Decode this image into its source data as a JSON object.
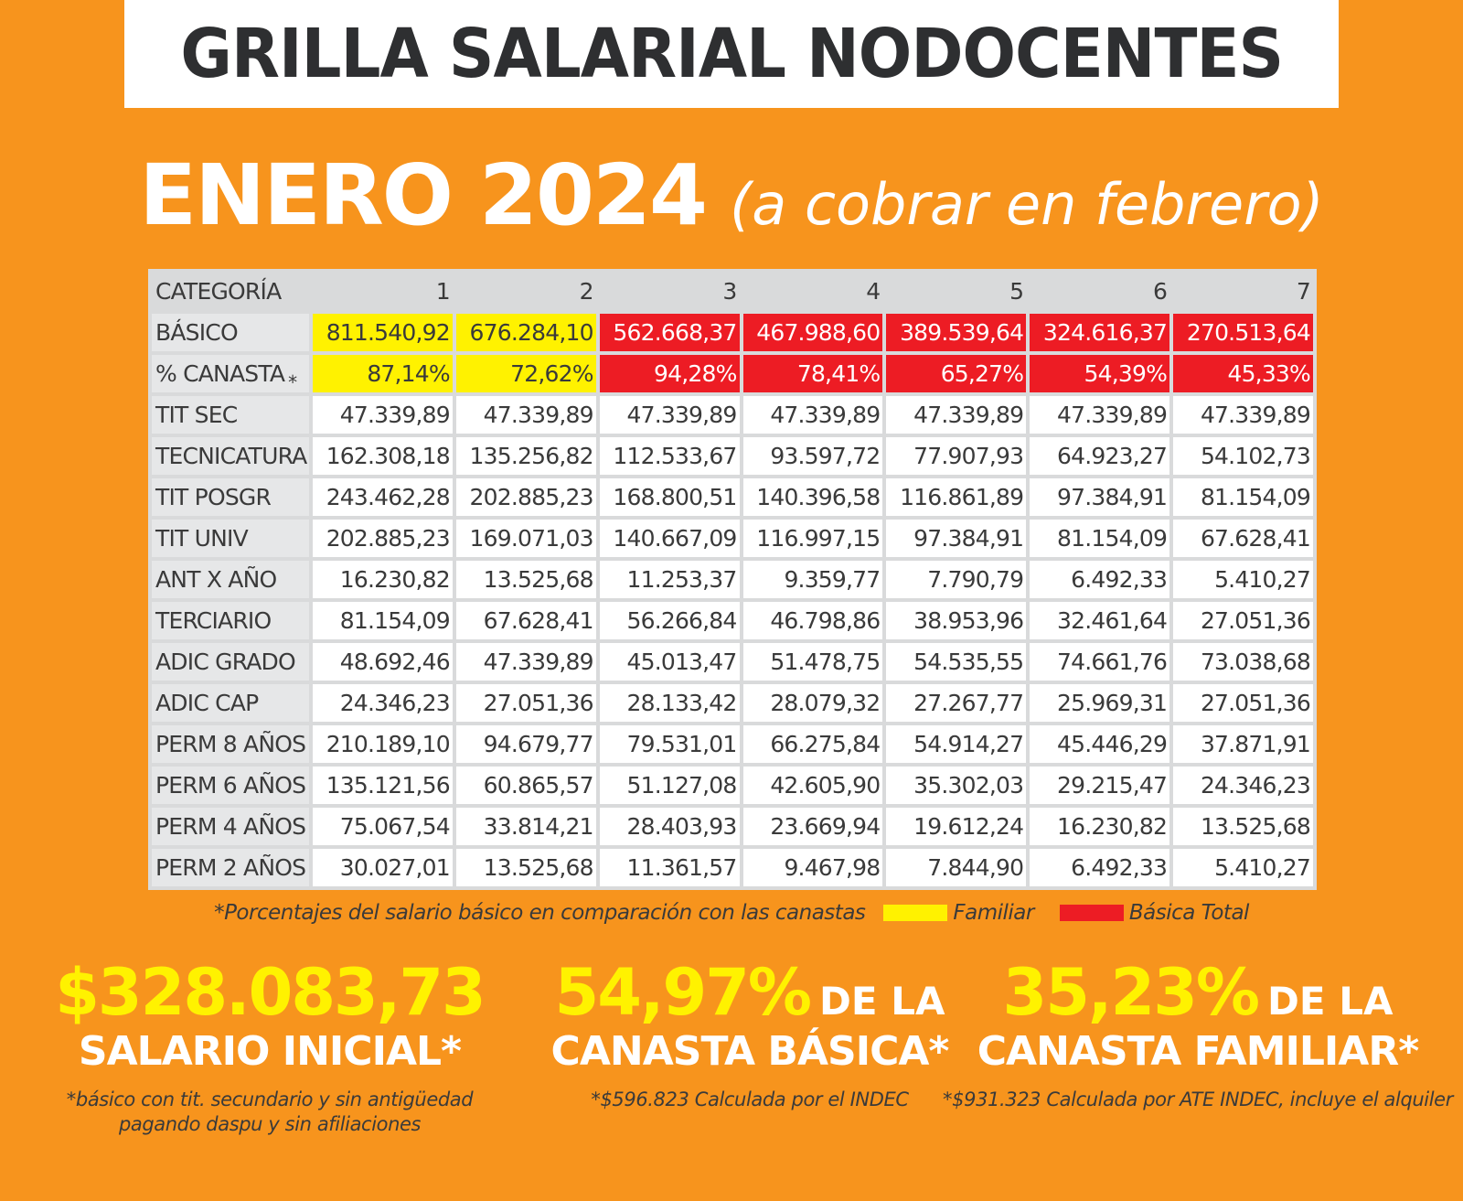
{
  "header": {
    "title": "GRILLA SALARIAL NODOCENTES",
    "period": "ENERO 2024",
    "period_note": "(a cobrar en febrero)"
  },
  "table": {
    "header_label": "CATEGORÍA",
    "categories": [
      "1",
      "2",
      "3",
      "4",
      "5",
      "6",
      "7"
    ],
    "rows": [
      {
        "label": "BÁSICO",
        "values": [
          "811.540,92",
          "676.284,10",
          "562.668,37",
          "467.988,60",
          "389.539,64",
          "324.616,37",
          "270.513,64"
        ],
        "highlight": [
          "yellow",
          "yellow",
          "red",
          "red",
          "red",
          "red",
          "red"
        ]
      },
      {
        "label": "% CANASTA",
        "star": "*",
        "values": [
          "87,14%",
          "72,62%",
          "94,28%",
          "78,41%",
          "65,27%",
          "54,39%",
          "45,33%"
        ],
        "highlight": [
          "yellow",
          "yellow",
          "red",
          "red",
          "red",
          "red",
          "red"
        ]
      },
      {
        "label": "TIT SEC",
        "values": [
          "47.339,89",
          "47.339,89",
          "47.339,89",
          "47.339,89",
          "47.339,89",
          "47.339,89",
          "47.339,89"
        ]
      },
      {
        "label": "TECNICATURA",
        "values": [
          "162.308,18",
          "135.256,82",
          "112.533,67",
          "93.597,72",
          "77.907,93",
          "64.923,27",
          "54.102,73"
        ]
      },
      {
        "label": "TIT POSGR",
        "values": [
          "243.462,28",
          "202.885,23",
          "168.800,51",
          "140.396,58",
          "116.861,89",
          "97.384,91",
          "81.154,09"
        ]
      },
      {
        "label": "TIT UNIV",
        "values": [
          "202.885,23",
          "169.071,03",
          "140.667,09",
          "116.997,15",
          "97.384,91",
          "81.154,09",
          "67.628,41"
        ]
      },
      {
        "label": "ANT X AÑO",
        "values": [
          "16.230,82",
          "13.525,68",
          "11.253,37",
          "9.359,77",
          "7.790,79",
          "6.492,33",
          "5.410,27"
        ]
      },
      {
        "label": "TERCIARIO",
        "values": [
          "81.154,09",
          "67.628,41",
          "56.266,84",
          "46.798,86",
          "38.953,96",
          "32.461,64",
          "27.051,36"
        ]
      },
      {
        "label": "ADIC GRADO",
        "values": [
          "48.692,46",
          "47.339,89",
          "45.013,47",
          "51.478,75",
          "54.535,55",
          "74.661,76",
          "73.038,68"
        ]
      },
      {
        "label": "ADIC CAP",
        "values": [
          "24.346,23",
          "27.051,36",
          "28.133,42",
          "28.079,32",
          "27.267,77",
          "25.969,31",
          "27.051,36"
        ]
      },
      {
        "label": "PERM 8 AÑOS",
        "values": [
          "210.189,10",
          "94.679,77",
          "79.531,01",
          "66.275,84",
          "54.914,27",
          "45.446,29",
          "37.871,91"
        ]
      },
      {
        "label": "PERM 6 AÑOS",
        "values": [
          "135.121,56",
          "60.865,57",
          "51.127,08",
          "42.605,90",
          "35.302,03",
          "29.215,47",
          "24.346,23"
        ]
      },
      {
        "label": "PERM 4 AÑOS",
        "values": [
          "75.067,54",
          "33.814,21",
          "28.403,93",
          "23.669,94",
          "19.612,24",
          "16.230,82",
          "13.525,68"
        ]
      },
      {
        "label": "PERM 2 AÑOS",
        "values": [
          "30.027,01",
          "13.525,68",
          "11.361,57",
          "9.467,98",
          "7.844,90",
          "6.492,33",
          "5.410,27"
        ]
      }
    ]
  },
  "legend": {
    "note": "*Porcentajes del salario básico en comparación con las canastas",
    "familiar": "Familiar",
    "basica_total": "Básica Total",
    "colors": {
      "familiar": "#fff200",
      "basica_total": "#ed1c24"
    }
  },
  "stats": {
    "initial_salary": {
      "value": "$328.083,73",
      "label": "SALARIO INICIAL*",
      "note_line1": "*básico con tit. secundario y sin antigüedad",
      "note_line2": "pagando daspu y sin afiliaciones"
    },
    "basic_basket": {
      "value": "54,97%",
      "suffix": "DE LA",
      "label": "CANASTA BÁSICA*",
      "note": "*$596.823 Calculada por el INDEC"
    },
    "family_basket": {
      "value": "35,23%",
      "suffix": "DE LA",
      "label": "CANASTA FAMILIAR*",
      "note": "*$931.323 Calculada por ATE INDEC, incluye el alquiler"
    }
  }
}
